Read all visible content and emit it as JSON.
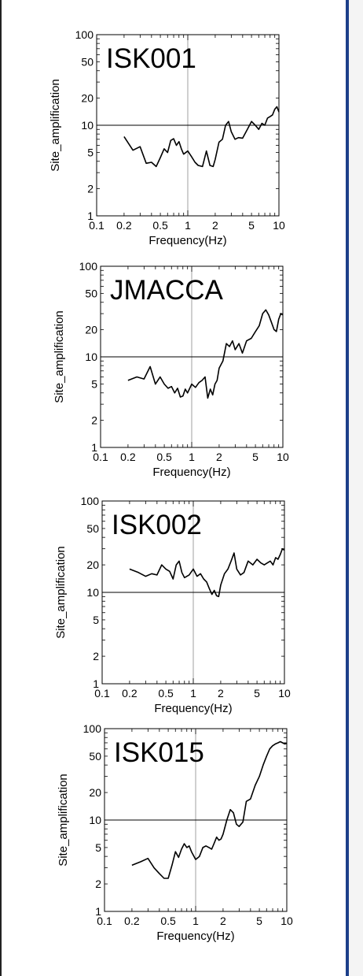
{
  "chart_data": [
    {
      "type": "line",
      "title": "ISK001",
      "xlabel": "Frequency(Hz)",
      "ylabel": "Site_amplification",
      "x_scale": "log",
      "y_scale": "log",
      "xlim": [
        0.1,
        10
      ],
      "ylim": [
        1,
        100
      ],
      "x_ticks": [
        "0.1",
        "0.2",
        "0.5",
        "1",
        "2",
        "5",
        "10"
      ],
      "y_ticks": [
        "1",
        "2",
        "5",
        "10",
        "20",
        "50",
        "100"
      ],
      "reference_lines": {
        "x": 1,
        "y": 10
      },
      "series": [
        {
          "x": [
            0.2,
            0.25,
            0.3,
            0.35,
            0.4,
            0.45,
            0.5,
            0.55,
            0.6,
            0.65,
            0.7,
            0.75,
            0.8,
            0.85,
            0.9,
            1.0,
            1.1,
            1.2,
            1.3,
            1.45,
            1.6,
            1.75,
            1.9,
            2.0,
            2.2,
            2.4,
            2.6,
            2.8,
            3.0,
            3.3,
            3.6,
            4.0,
            4.5,
            5.0,
            5.5,
            6.0,
            6.5,
            7.0,
            7.5,
            8.0,
            8.5,
            9.0,
            9.5,
            10.0
          ],
          "values": [
            7.5,
            5.3,
            5.8,
            3.8,
            3.9,
            3.5,
            4.4,
            5.5,
            5.0,
            6.8,
            7.1,
            6.0,
            6.6,
            5.5,
            4.8,
            5.2,
            4.5,
            3.9,
            3.6,
            3.5,
            5.2,
            3.6,
            3.5,
            4.2,
            6.5,
            7.0,
            10.0,
            11.0,
            8.5,
            7.0,
            7.3,
            7.2,
            9.0,
            11.0,
            10.0,
            9.0,
            10.5,
            10.0,
            12.0,
            12.5,
            13.0,
            15.0,
            16.0,
            14.0
          ]
        }
      ]
    },
    {
      "type": "line",
      "title": "JMACCA",
      "xlabel": "Frequency(Hz)",
      "ylabel": "Site_amplification",
      "x_scale": "log",
      "y_scale": "log",
      "xlim": [
        0.1,
        10
      ],
      "ylim": [
        1,
        100
      ],
      "x_ticks": [
        "0.1",
        "0.2",
        "0.5",
        "1",
        "2",
        "5",
        "10"
      ],
      "y_ticks": [
        "1",
        "2",
        "5",
        "10",
        "20",
        "50",
        "100"
      ],
      "reference_lines": {
        "x": 1,
        "y": 10
      },
      "series": [
        {
          "x": [
            0.2,
            0.25,
            0.3,
            0.35,
            0.4,
            0.45,
            0.5,
            0.55,
            0.6,
            0.65,
            0.7,
            0.75,
            0.8,
            0.85,
            0.9,
            1.0,
            1.1,
            1.2,
            1.3,
            1.4,
            1.5,
            1.6,
            1.7,
            1.8,
            1.9,
            2.0,
            2.2,
            2.4,
            2.6,
            2.8,
            3.0,
            3.3,
            3.6,
            4.0,
            4.5,
            5.0,
            5.5,
            6.0,
            6.5,
            7.0,
            7.5,
            8.0,
            8.5,
            9.0,
            9.5,
            10.0
          ],
          "values": [
            5.5,
            6.0,
            5.7,
            7.8,
            5.0,
            6.0,
            5.0,
            4.5,
            4.7,
            4.0,
            4.5,
            3.6,
            3.7,
            4.4,
            4.0,
            5.0,
            4.6,
            5.2,
            5.5,
            6.0,
            3.5,
            4.4,
            3.8,
            5.0,
            5.5,
            7.5,
            9.0,
            14.0,
            13.0,
            15.0,
            12.0,
            14.0,
            11.0,
            15.0,
            16.0,
            19.0,
            22.0,
            30.0,
            33.0,
            29.0,
            24.0,
            20.0,
            19.0,
            26.0,
            30.0,
            29.0
          ]
        }
      ]
    },
    {
      "type": "line",
      "title": "ISK002",
      "xlabel": "Frequency(Hz)",
      "ylabel": "Site_amplification",
      "x_scale": "log",
      "y_scale": "log",
      "xlim": [
        0.1,
        10
      ],
      "ylim": [
        1,
        100
      ],
      "x_ticks": [
        "0.1",
        "0.2",
        "0.5",
        "1",
        "2",
        "5",
        "10"
      ],
      "y_ticks": [
        "1",
        "2",
        "5",
        "10",
        "20",
        "50",
        "100"
      ],
      "reference_lines": {
        "x": 1,
        "y": 10
      },
      "series": [
        {
          "x": [
            0.2,
            0.25,
            0.3,
            0.35,
            0.4,
            0.45,
            0.5,
            0.55,
            0.6,
            0.65,
            0.7,
            0.75,
            0.8,
            0.9,
            1.0,
            1.1,
            1.2,
            1.3,
            1.4,
            1.5,
            1.6,
            1.7,
            1.8,
            1.9,
            2.0,
            2.2,
            2.4,
            2.6,
            2.8,
            3.0,
            3.3,
            3.6,
            4.0,
            4.5,
            5.0,
            5.5,
            6.0,
            6.5,
            7.0,
            7.5,
            8.0,
            8.5,
            9.0,
            9.5,
            10.0
          ],
          "values": [
            18.0,
            16.5,
            15.0,
            16.0,
            15.5,
            20.0,
            18.0,
            17.0,
            14.0,
            20.0,
            22.0,
            16.5,
            14.5,
            15.5,
            18.0,
            15.0,
            16.0,
            14.0,
            13.0,
            11.0,
            9.5,
            10.5,
            9.2,
            9.0,
            12.0,
            16.0,
            18.0,
            22.0,
            27.0,
            18.0,
            15.5,
            16.5,
            22.0,
            20.0,
            23.0,
            21.0,
            20.0,
            21.0,
            22.0,
            20.0,
            24.0,
            23.0,
            26.0,
            30.0,
            29.0
          ]
        }
      ]
    },
    {
      "type": "line",
      "title": "ISK015",
      "xlabel": "Frequency(Hz)",
      "ylabel": "Site_amplification",
      "x_scale": "log",
      "y_scale": "log",
      "xlim": [
        0.1,
        10
      ],
      "ylim": [
        1,
        100
      ],
      "x_ticks": [
        "0.1",
        "0.2",
        "0.5",
        "1",
        "2",
        "5",
        "10"
      ],
      "y_ticks": [
        "1",
        "2",
        "5",
        "10",
        "20",
        "50",
        "100"
      ],
      "reference_lines": {
        "x": 1,
        "y": 10
      },
      "series": [
        {
          "x": [
            0.2,
            0.25,
            0.3,
            0.35,
            0.4,
            0.45,
            0.5,
            0.55,
            0.6,
            0.65,
            0.7,
            0.75,
            0.8,
            0.85,
            0.9,
            1.0,
            1.1,
            1.2,
            1.3,
            1.4,
            1.5,
            1.6,
            1.7,
            1.8,
            1.9,
            2.0,
            2.2,
            2.4,
            2.6,
            2.8,
            3.0,
            3.3,
            3.6,
            4.0,
            4.5,
            5.0,
            5.5,
            6.0,
            6.5,
            7.0,
            7.5,
            8.0,
            8.5,
            9.0,
            9.5,
            10.0
          ],
          "values": [
            3.2,
            3.5,
            3.8,
            3.0,
            2.6,
            2.3,
            2.3,
            3.2,
            4.5,
            3.9,
            4.8,
            5.5,
            5.0,
            5.2,
            4.5,
            3.7,
            4.0,
            5.0,
            5.2,
            5.0,
            4.8,
            5.6,
            6.5,
            6.0,
            6.2,
            7.0,
            10.0,
            13.0,
            12.0,
            9.0,
            8.5,
            9.5,
            16.0,
            17.0,
            24.0,
            30.0,
            40.0,
            50.0,
            60.0,
            65.0,
            68.0,
            70.0,
            72.0,
            70.0,
            68.0,
            69.0
          ]
        }
      ]
    }
  ]
}
